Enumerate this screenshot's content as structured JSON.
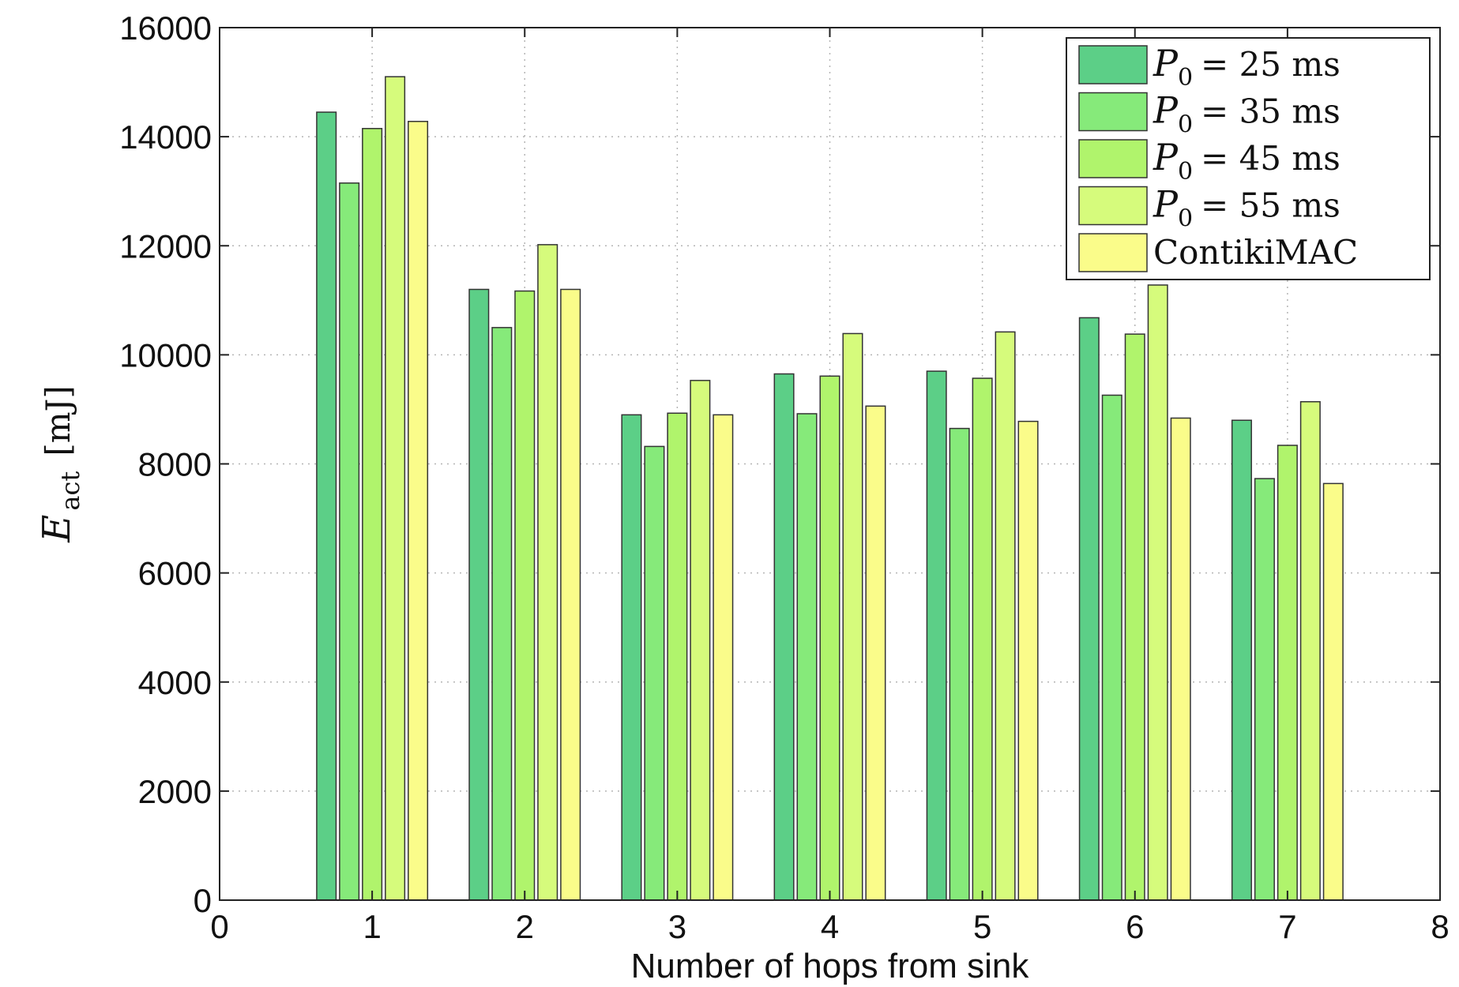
{
  "chart_data": {
    "type": "bar",
    "x": [
      1,
      2,
      3,
      4,
      5,
      6,
      7
    ],
    "xlabel": "Number of hops from sink",
    "ylabel": {
      "symbol": "E",
      "subscript": "act",
      "unit": "[mJ]"
    },
    "xlim": [
      0,
      8
    ],
    "ylim": [
      0,
      16000
    ],
    "xticks": [
      "0",
      "1",
      "2",
      "3",
      "4",
      "5",
      "6",
      "7",
      "8"
    ],
    "yticks": [
      "0",
      "2000",
      "4000",
      "6000",
      "8000",
      "10000",
      "12000",
      "14000",
      "16000"
    ],
    "grid": true,
    "legend_position": "top-right",
    "series": [
      {
        "name": "P0 = 25 ms",
        "label": {
          "symbol": "P",
          "subscript": "0",
          "text": "= 25 ms"
        },
        "color": "#5ccf87",
        "values": [
          14450,
          11200,
          8900,
          9650,
          9700,
          10680,
          8800
        ]
      },
      {
        "name": "P0 = 35 ms",
        "label": {
          "symbol": "P",
          "subscript": "0",
          "text": "= 35 ms"
        },
        "color": "#86ea7a",
        "values": [
          13150,
          10500,
          8320,
          8920,
          8650,
          9260,
          7730
        ]
      },
      {
        "name": "P0 = 45 ms",
        "label": {
          "symbol": "P",
          "subscript": "0",
          "text": "= 45 ms"
        },
        "color": "#b0f46c",
        "values": [
          14150,
          11170,
          8930,
          9610,
          9570,
          10380,
          8340
        ]
      },
      {
        "name": "P0 = 55 ms",
        "label": {
          "symbol": "P",
          "subscript": "0",
          "text": "= 55 ms"
        },
        "color": "#d6fb7c",
        "values": [
          15100,
          12020,
          9530,
          10390,
          10420,
          11280,
          9140
        ]
      },
      {
        "name": "ContikiMAC",
        "label": {
          "symbol": "",
          "subscript": "",
          "text": "ContikiMAC"
        },
        "color": "#fafc8a",
        "values": [
          14280,
          11200,
          8900,
          9060,
          8780,
          8840,
          7640
        ]
      }
    ]
  }
}
